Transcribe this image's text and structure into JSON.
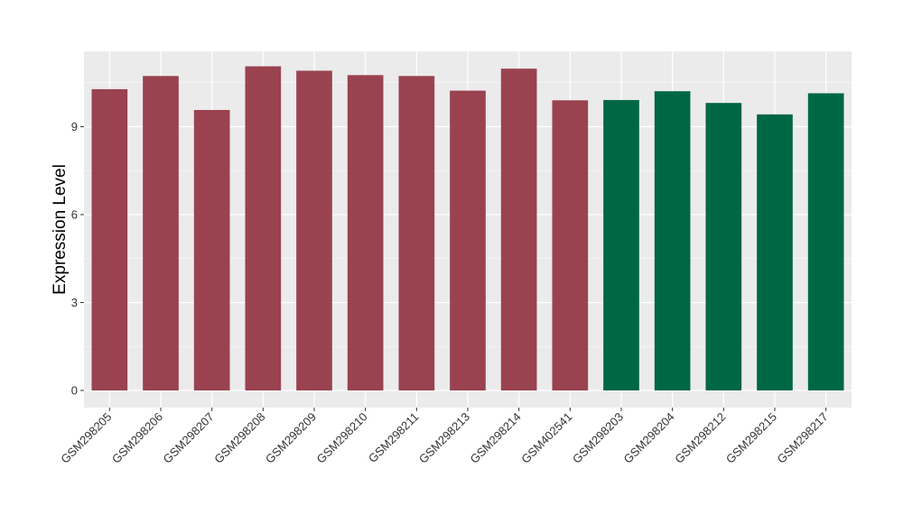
{
  "chart_data": {
    "type": "bar",
    "ylabel": "Expression Level",
    "xlabel": "",
    "ylim": [
      0,
      11.6
    ],
    "yticks": [
      0,
      3,
      6,
      9
    ],
    "grid": true,
    "legend": "none",
    "categories": [
      "GSM298205",
      "GSM298206",
      "GSM298207",
      "GSM298208",
      "GSM298209",
      "GSM298210",
      "GSM298211",
      "GSM298213",
      "GSM298214",
      "GSM402541",
      "GSM298203",
      "GSM298204",
      "GSM298212",
      "GSM298215",
      "GSM298217"
    ],
    "values": [
      10.28,
      10.73,
      9.57,
      11.06,
      10.91,
      10.76,
      10.73,
      10.23,
      10.98,
      9.9,
      9.91,
      10.21,
      9.81,
      9.42,
      10.14
    ],
    "groups": [
      0,
      0,
      0,
      0,
      0,
      0,
      0,
      0,
      0,
      0,
      1,
      1,
      1,
      1,
      1
    ],
    "colors": [
      "#9a4250",
      "#006745"
    ],
    "panel_color": "#ebebeb",
    "grid_color": "#ffffff"
  }
}
